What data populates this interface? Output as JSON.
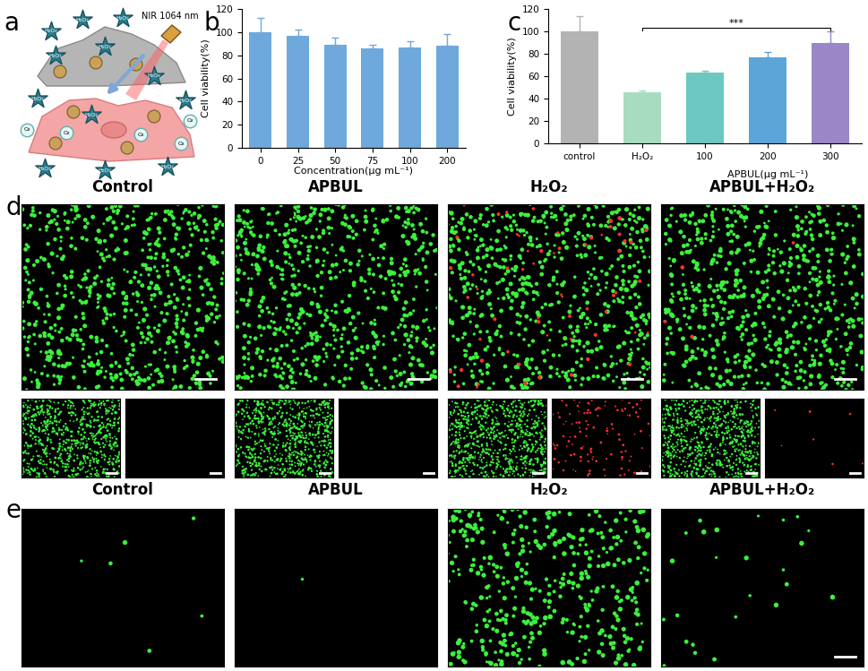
{
  "panel_labels": [
    "a",
    "b",
    "c",
    "d",
    "e"
  ],
  "schematic": {
    "laser": "NIR 1064 nm",
    "h2o2_labels": [
      "H₂O₂",
      "H₂O₂",
      "H₂O₂",
      "H₂O₂",
      "H₂O₂",
      "H₂O₂",
      "H₂O₂",
      "H₂O₂",
      "H₂O₂",
      "H₂O₂",
      "H₂O₂",
      "H₂O₂"
    ],
    "o2_labels": [
      "O₂",
      "O₂",
      "O₂",
      "O₂",
      "O₂"
    ]
  },
  "chart_data": [
    {
      "type": "bar",
      "xlabel": "Concentration(μg mL⁻¹)",
      "ylabel": "Cell viability(%)",
      "categories": [
        "0",
        "25",
        "50",
        "75",
        "100",
        "200"
      ],
      "values": [
        100,
        97,
        89,
        86,
        87,
        88
      ],
      "errors": [
        12,
        5,
        6,
        3,
        5,
        10
      ],
      "color": "#6fa8dc",
      "ylim": [
        0,
        120
      ],
      "yticks": [
        0,
        20,
        40,
        60,
        80,
        100,
        120
      ]
    },
    {
      "type": "bar",
      "xlabel": "APBUL(μg mL⁻¹)",
      "ylabel": "Cell viability(%)",
      "categories": [
        "control",
        "H₂O₂",
        "100",
        "200",
        "300"
      ],
      "values": [
        100,
        46,
        63,
        77,
        90
      ],
      "errors": [
        14,
        1.5,
        2,
        5,
        10
      ],
      "colors": [
        "#b3b3b3",
        "#a8dcc0",
        "#6cc8c0",
        "#5ba5d8",
        "#9b86c8"
      ],
      "ylim": [
        0,
        120
      ],
      "yticks": [
        0,
        20,
        40,
        60,
        80,
        100,
        120
      ],
      "annotations": [
        {
          "text": "***",
          "between": [
            "H₂O₂",
            "300"
          ]
        }
      ]
    }
  ],
  "image_panels": [
    {
      "panel": "d",
      "titles": [
        "Control",
        "APBUL",
        "H₂O₂",
        "APBUL+H₂O₂"
      ]
    },
    {
      "panel": "e",
      "titles": [
        "Control",
        "APBUL",
        "H₂O₂",
        "APBUL+H₂O₂"
      ]
    }
  ]
}
